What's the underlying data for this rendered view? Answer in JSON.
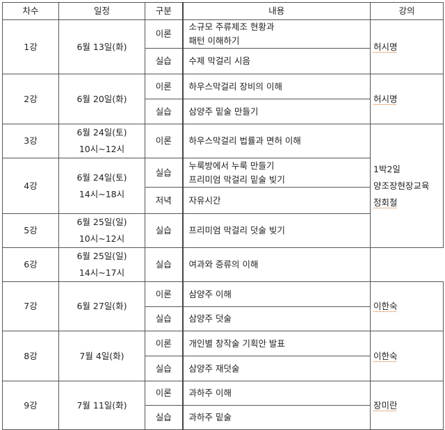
{
  "headers": [
    "차수",
    "일정",
    "구분",
    "내용",
    "강의"
  ],
  "sessions": [
    {
      "no": "1강",
      "date": [
        "6월 13일(화)"
      ],
      "lecturer": [
        "허시명"
      ],
      "parts": [
        {
          "type": "이론",
          "content": [
            "소규모 주류제조 현황과",
            "패턴 이해하기"
          ]
        },
        {
          "type": "실습",
          "content": [
            "수제 막걸리 시음"
          ]
        }
      ]
    },
    {
      "no": "2강",
      "date": [
        "6월 20일(화)"
      ],
      "lecturer": [
        "허시명"
      ],
      "parts": [
        {
          "type": "이론",
          "content": [
            "하우스막걸리 장비의 이해"
          ]
        },
        {
          "type": "실습",
          "content": [
            "삼양주 밑술 만들기"
          ]
        }
      ]
    },
    {
      "no": "3강",
      "date": [
        "6월 24일(토)",
        "10시~12시"
      ],
      "lecturer": [
        "1박2일",
        "양조장현장교육",
        "정회철"
      ],
      "lecturer_span": 4,
      "parts": [
        {
          "type": "이론",
          "content": [
            "하우스막걸리 법률과 면허 이해"
          ]
        }
      ]
    },
    {
      "no": "4강",
      "date": [
        "6월 24일(토)",
        "14시~18시"
      ],
      "parts": [
        {
          "type": "실습",
          "content": [
            "누룩방에서 누룩 만들기",
            "프리미엄 막걸리 밑술 빚기"
          ]
        },
        {
          "type": "저녁",
          "content": [
            "자유시간"
          ]
        }
      ]
    },
    {
      "no": "5강",
      "date": [
        "6월 25일(일)",
        "10시~12시"
      ],
      "parts": [
        {
          "type": "실습",
          "content": [
            "프리미엄 막걸리 덧술 빚기"
          ]
        }
      ]
    },
    {
      "no": "6강",
      "date": [
        "6월 25일(일)",
        "14시~17시"
      ],
      "parts": [
        {
          "type": "실습",
          "content": [
            "여과와 증류의 이해"
          ]
        }
      ]
    },
    {
      "no": "7강",
      "date": [
        "6월 27일(화)"
      ],
      "lecturer": [
        "이한숙"
      ],
      "parts": [
        {
          "type": "이론",
          "content": [
            "삼양주 이해"
          ]
        },
        {
          "type": "실습",
          "content": [
            "삼양주 덧술"
          ]
        }
      ]
    },
    {
      "no": "8강",
      "date": [
        "7월 4일(화)"
      ],
      "lecturer": [
        "이한숙"
      ],
      "parts": [
        {
          "type": "이론",
          "content": [
            "개인별 창작술 기획안 발표"
          ]
        },
        {
          "type": "실습",
          "content": [
            "삼양주 재덧술"
          ]
        }
      ]
    },
    {
      "no": "9강",
      "date": [
        "7월 11일(화)"
      ],
      "lecturer": [
        "장미란"
      ],
      "parts": [
        {
          "type": "이론",
          "content": [
            "과하주 이해"
          ]
        },
        {
          "type": "실습",
          "content": [
            "과하주 밑술"
          ]
        }
      ]
    }
  ]
}
